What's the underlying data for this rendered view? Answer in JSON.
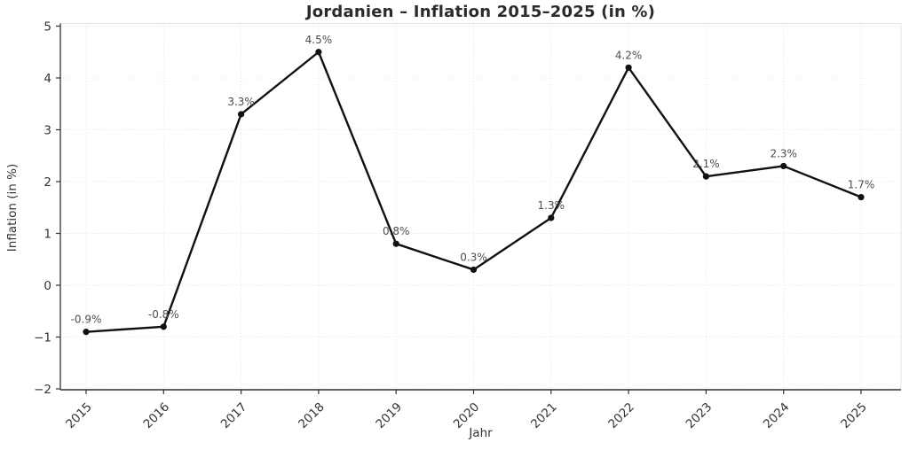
{
  "chart_data": {
    "type": "line",
    "title": "Jordanien – Inflation 2015–2025 (in %)",
    "xlabel": "Jahr",
    "ylabel": "Inflation (in %)",
    "categories": [
      "2015",
      "2016",
      "2017",
      "2018",
      "2019",
      "2020",
      "2021",
      "2022",
      "2023",
      "2024",
      "2025"
    ],
    "values": [
      -0.9,
      -0.8,
      3.3,
      4.5,
      0.8,
      0.3,
      1.3,
      4.2,
      2.1,
      2.3,
      1.7
    ],
    "point_labels": [
      "-0.9%",
      "-0.8%",
      "3.3%",
      "4.5%",
      "0.8%",
      "0.3%",
      "1.3%",
      "4.2%",
      "2.1%",
      "2.3%",
      "1.7%"
    ],
    "yticks": [
      -2,
      -1,
      0,
      1,
      2,
      3,
      4,
      5
    ],
    "ytick_labels": [
      "−2",
      "−1",
      "0",
      "1",
      "2",
      "3",
      "4",
      "5"
    ],
    "ylim": [
      -2,
      5
    ],
    "grid": true,
    "legend": "none",
    "line_color": "#111111",
    "marker_color": "#111111",
    "grid_color": "#e7e7e7",
    "axis_color": "#333333",
    "light_spine_color": "#e3e3e3",
    "tick_label_color": "#333333",
    "annotation_color": "#4d4d4d",
    "background_color": "#ffffff"
  }
}
